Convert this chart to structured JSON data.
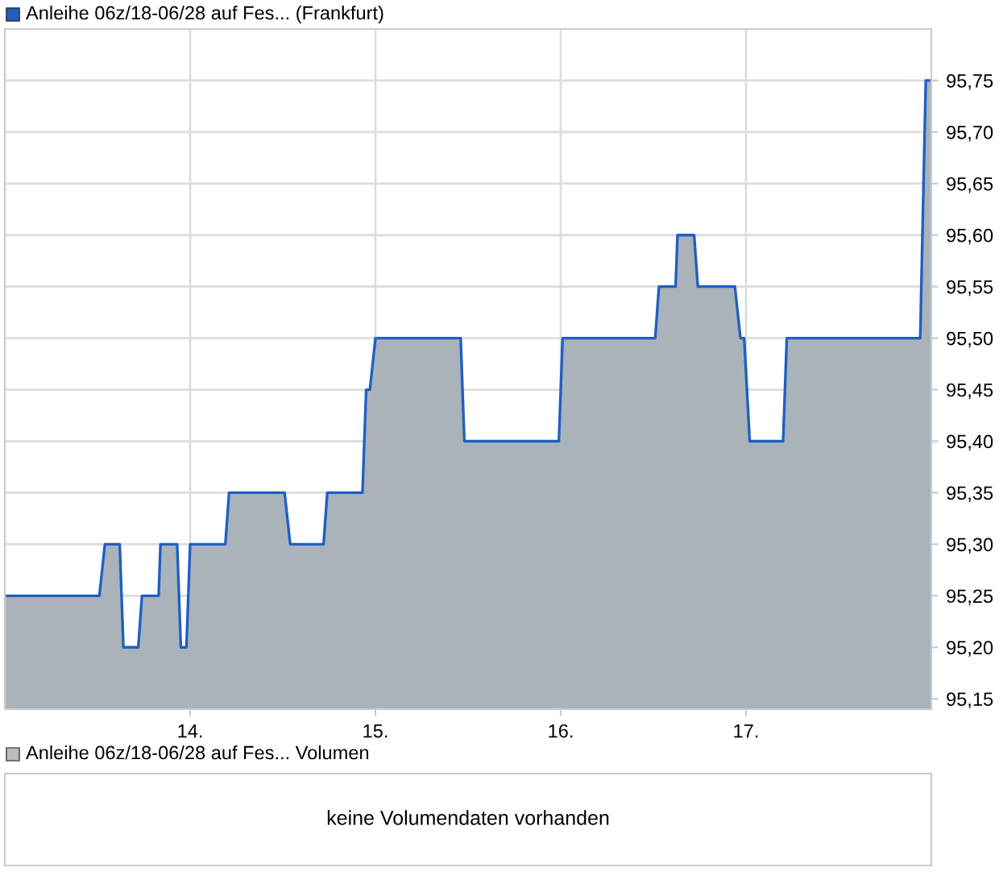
{
  "chart_data": [
    {
      "type": "area",
      "legend": "top",
      "grid": true,
      "marker": "none",
      "line_style": "solid",
      "xlim": [
        13.0,
        18.0
      ],
      "ylim": [
        95.14,
        95.8
      ],
      "xticks": [
        {
          "value": 14,
          "label": "14."
        },
        {
          "value": 15,
          "label": "15."
        },
        {
          "value": 16,
          "label": "16."
        },
        {
          "value": 17,
          "label": "17."
        }
      ],
      "yticks": [
        {
          "value": 95.15,
          "label": "95,15"
        },
        {
          "value": 95.2,
          "label": "95,20"
        },
        {
          "value": 95.25,
          "label": "95,25"
        },
        {
          "value": 95.3,
          "label": "95,30"
        },
        {
          "value": 95.35,
          "label": "95,35"
        },
        {
          "value": 95.4,
          "label": "95,40"
        },
        {
          "value": 95.45,
          "label": "95,45"
        },
        {
          "value": 95.5,
          "label": "95,50"
        },
        {
          "value": 95.55,
          "label": "95,55"
        },
        {
          "value": 95.6,
          "label": "95,60"
        },
        {
          "value": 95.65,
          "label": "95,65"
        },
        {
          "value": 95.7,
          "label": "95,70"
        },
        {
          "value": 95.75,
          "label": "95,75"
        }
      ],
      "series": [
        {
          "name": "Anleihe 06z/18-06/28 auf Fes... (Frankfurt)",
          "color": "#1f5fc4",
          "x": [
            13.0,
            13.51,
            13.54,
            13.62,
            13.64,
            13.72,
            13.74,
            13.83,
            13.84,
            13.93,
            13.95,
            13.98,
            14.0,
            14.19,
            14.21,
            14.51,
            14.54,
            14.72,
            14.74,
            14.93,
            14.95,
            14.97,
            15.0,
            15.46,
            15.48,
            15.99,
            16.01,
            16.51,
            16.53,
            16.62,
            16.63,
            16.72,
            16.74,
            16.94,
            16.97,
            16.99,
            17.02,
            17.2,
            17.22,
            17.94,
            17.97,
            18.0
          ],
          "values": [
            95.25,
            95.25,
            95.3,
            95.3,
            95.2,
            95.2,
            95.25,
            95.25,
            95.3,
            95.3,
            95.2,
            95.2,
            95.3,
            95.3,
            95.35,
            95.35,
            95.3,
            95.3,
            95.35,
            95.35,
            95.45,
            95.45,
            95.5,
            95.5,
            95.4,
            95.4,
            95.5,
            95.5,
            95.55,
            95.55,
            95.6,
            95.6,
            95.55,
            95.55,
            95.5,
            95.5,
            95.4,
            95.4,
            95.5,
            95.5,
            95.75,
            95.75
          ]
        }
      ]
    },
    {
      "type": "other",
      "title": "Anleihe 06z/18-06/28 auf Fes... Volumen",
      "annotations": [
        "keine Volumendaten vorhanden"
      ]
    }
  ]
}
